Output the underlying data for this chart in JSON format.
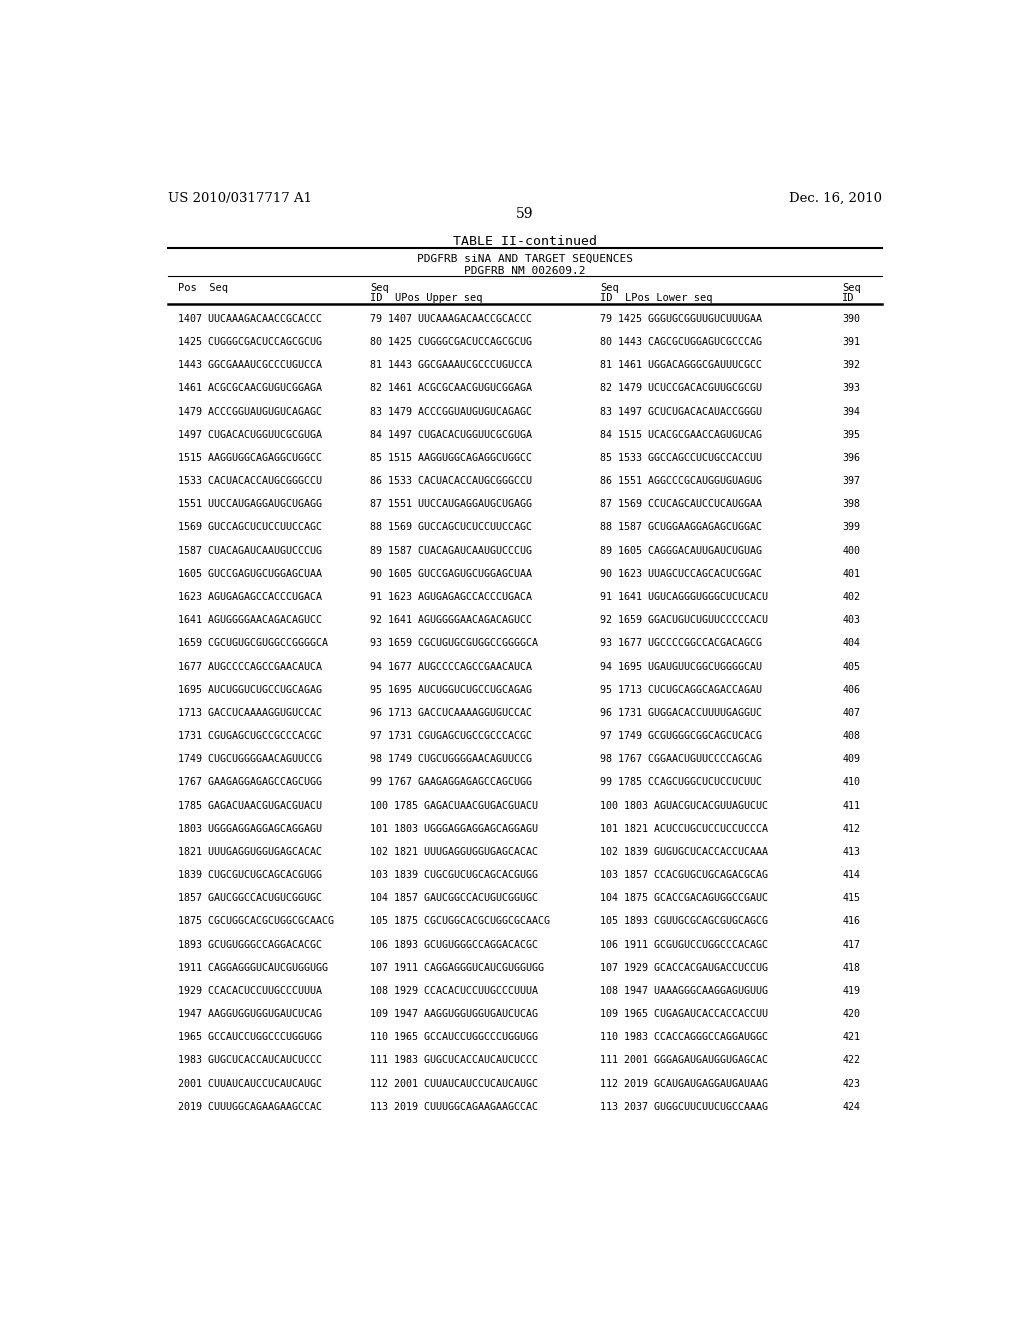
{
  "header_left": "US 2010/0317717 A1",
  "header_right": "Dec. 16, 2010",
  "page_number": "59",
  "table_title": "TABLE II-continued",
  "subtitle1": "PDGFRB siNA AND TARGET SEQUENCES",
  "subtitle2": "PDGFRB NM_002609.2",
  "bg_color": "#ffffff",
  "text_color": "#000000",
  "font_size": 7.2,
  "row_data": [
    [
      "1407 UUCAAAGACAACCGCACCC",
      "79 1407 UUCAAAGACAACCGCACCC",
      "79 1425 GGGUGCGGUUGUCUUUGAA",
      "390"
    ],
    [
      "1425 CUGGGCGACUCCAGCGCUG",
      "80 1425 CUGGGCGACUCCAGCGCUG",
      "80 1443 CAGCGCUGGAGUCGCCCAG",
      "391"
    ],
    [
      "1443 GGCGAAAUCGCCCUGUCCA",
      "81 1443 GGCGAAAUCGCCCUGUCCA",
      "81 1461 UGGACAGGGCGAUUUCGCC",
      "392"
    ],
    [
      "1461 ACGCGCAACGUGUCGGAGA",
      "82 1461 ACGCGCAACGUGUCGGAGA",
      "82 1479 UCUCCGACACGUUGCGCGU",
      "393"
    ],
    [
      "1479 ACCCGGUAUGUGUCAGAGC",
      "83 1479 ACCCGGUAUGUGUCAGAGC",
      "83 1497 GCUCUGACACAUACCGGGU",
      "394"
    ],
    [
      "1497 CUGACACUGGUUCGCGUGA",
      "84 1497 CUGACACUGGUUCGCGUGA",
      "84 1515 UCACGCGAACCAGUGUCAG",
      "395"
    ],
    [
      "1515 AAGGUGGCAGAGGCUGGCC",
      "85 1515 AAGGUGGCAGAGGCUGGCC",
      "85 1533 GGCCAGCCUCUGCCACCUU",
      "396"
    ],
    [
      "1533 CACUACACCAUGCGGGCCU",
      "86 1533 CACUACACCAUGCGGGCCU",
      "86 1551 AGGCCCGCAUGGUGUAGUG",
      "397"
    ],
    [
      "1551 UUCCAUGAGGAUGCUGAGG",
      "87 1551 UUCCAUGAGGAUGCUGAGG",
      "87 1569 CCUCAGCAUCCUCAUGGAA",
      "398"
    ],
    [
      "1569 GUCCAGCUCUCCUUCCAGC",
      "88 1569 GUCCAGCUCUCCUUCCAGC",
      "88 1587 GCUGGAAGGAGAGCUGGAC",
      "399"
    ],
    [
      "1587 CUACAGAUCAAUGUCCCUG",
      "89 1587 CUACAGAUCAAUGUCCCUG",
      "89 1605 CAGGGACAUUGAUCUGUAG",
      "400"
    ],
    [
      "1605 GUCCGAGUGCUGGAGCUAA",
      "90 1605 GUCCGAGUGCUGGAGCUAA",
      "90 1623 UUAGCUCCAGCACUCGGAC",
      "401"
    ],
    [
      "1623 AGUGAGAGCCACCCUGACA",
      "91 1623 AGUGAGAGCCACCCUGACA",
      "91 1641 UGUCAGGGUGGGCUCUCACU",
      "402"
    ],
    [
      "1641 AGUGGGGAACAGACAGUCC",
      "92 1641 AGUGGGGAACAGACAGUCC",
      "92 1659 GGACUGUCUGUUCCCCCACU",
      "403"
    ],
    [
      "1659 CGCUGUGCGUGGCCGGGGCA",
      "93 1659 CGCUGUGCGUGGCCGGGGCA",
      "93 1677 UGCCCCGGCCACGACAGCG",
      "404"
    ],
    [
      "1677 AUGCCCCAGCCGAACAUCA",
      "94 1677 AUGCCCCAGCCGAACAUCA",
      "94 1695 UGAUGUUCGGCUGGGGCAU",
      "405"
    ],
    [
      "1695 AUCUGGUCUGCCUGCAGAG",
      "95 1695 AUCUGGUCUGCCUGCAGAG",
      "95 1713 CUCUGCAGGCAGACCAGAU",
      "406"
    ],
    [
      "1713 GACCUCAAAAGGUGUCCAC",
      "96 1713 GACCUCAAAAGGUGUCCAC",
      "96 1731 GUGGACACCUUUUGAGGUC",
      "407"
    ],
    [
      "1731 CGUGAGCUGCCGCCCACGC",
      "97 1731 CGUGAGCUGCCGCCCACGC",
      "97 1749 GCGUGGGCGGCAGCUCACG",
      "408"
    ],
    [
      "1749 CUGCUGGGGAACAGUUCCG",
      "98 1749 CUGCUGGGGAACAGUUCCG",
      "98 1767 CGGAACUGUUCCCCAGCAG",
      "409"
    ],
    [
      "1767 GAAGAGGAGAGCCAGCUGG",
      "99 1767 GAAGAGGAGAGCCAGCUGG",
      "99 1785 CCAGCUGGCUCUCCUCUUC",
      "410"
    ],
    [
      "1785 GAGACUAACGUGACGUACU",
      "100 1785 GAGACUAACGUGACGUACU",
      "100 1803 AGUACGUCACGUUAGUCUC",
      "411"
    ],
    [
      "1803 UGGGAGGAGGAGCAGGAGU",
      "101 1803 UGGGAGGAGGAGCAGGAGU",
      "101 1821 ACUCCUGCUCCUCCUCCCA",
      "412"
    ],
    [
      "1821 UUUGAGGUGGUGAGCACAC",
      "102 1821 UUUGAGGUGGUGAGCACAC",
      "102 1839 GUGUGCUCACCACCUCAAA",
      "413"
    ],
    [
      "1839 CUGCGUCUGCAGCACGUGG",
      "103 1839 CUGCGUCUGCAGCACGUGG",
      "103 1857 CCACGUGCUGCAGACGCAG",
      "414"
    ],
    [
      "1857 GAUCGGCCACUGUCGGUGC",
      "104 1857 GAUCGGCCACUGUCGGUGC",
      "104 1875 GCACCGACAGUGGCCGAUC",
      "415"
    ],
    [
      "1875 CGCUGGCACGCUGGCGCAACG",
      "105 1875 CGCUGGCACGCUGGCGCAACG",
      "105 1893 CGUUGCGCAGCGUGCAGCG",
      "416"
    ],
    [
      "1893 GCUGUGGGCCAGGACACGC",
      "106 1893 GCUGUGGGCCAGGACACGC",
      "106 1911 GCGUGUCCUGGCCCACAGC",
      "417"
    ],
    [
      "1911 CAGGAGGGUCAUCGUGGUGG",
      "107 1911 CAGGAGGGUCAUCGUGGUGG",
      "107 1929 GCACCACGAUGACCUCCUG",
      "418"
    ],
    [
      "1929 CCACACUCCUUGCCCUUUA",
      "108 1929 CCACACUCCUUGCCCUUUA",
      "108 1947 UAAAGGGCAAGGAGUGUUG",
      "419"
    ],
    [
      "1947 AAGGUGGUGGUGAUCUCAG",
      "109 1947 AAGGUGGUGGUGAUCUCAG",
      "109 1965 CUGAGAUCACCACCACCUU",
      "420"
    ],
    [
      "1965 GCCAUCCUGGCCCUGGUGG",
      "110 1965 GCCAUCCUGGCCCUGGUGG",
      "110 1983 CCACCAGGGCCAGGAUGGC",
      "421"
    ],
    [
      "1983 GUGCUCACCAUCAUCUCCC",
      "111 1983 GUGCUCACCAUCAUCUCCC",
      "111 2001 GGGAGAUGAUGGUGAGCAC",
      "422"
    ],
    [
      "2001 CUUAUCAUCCUCAUCAUGC",
      "112 2001 CUUAUCAUCCUCAUCAUGC",
      "112 2019 GCAUGAUGAGGAUGAUAAG",
      "423"
    ],
    [
      "2019 CUUUGGCAGAAGAAGCCAC",
      "113 2019 CUUUGGCAGAAGAAGCCAC",
      "113 2037 GUGGCUUCUUCUGCCAAAG",
      "424"
    ]
  ]
}
